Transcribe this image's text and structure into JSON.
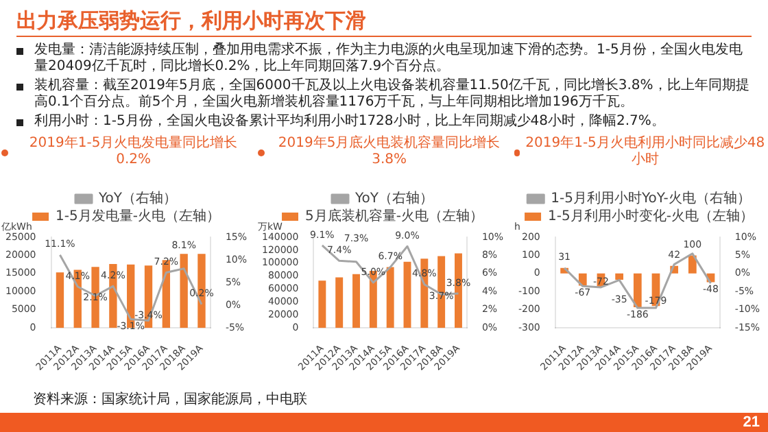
{
  "chart_data": [
    {
      "type": "other",
      "title": "出力承压弱势运行，利用小时再次下滑",
      "annotations": [
        "发电量：清洁能源持续压制，叠加用电需求不振，作为主力电源的火电呈现加速下滑的态势。1-5月份，全国火电发电量20409亿千瓦时，同比增长0.2%，比上年同期回落7.9个百分点。",
        "装机容量：截至2019年5月底，全国6000千瓦及以上火电设备装机容量11.50亿千瓦，同比增长3.8%，比上年同期提高0.1个百分点。前5个月，全国火电新增装机容量1176万千瓦，与上年同期相比增加196万千瓦。",
        "利用小时：1-5月份，全国火电设备累计平均利用小时1728小时，比上年同期减少48小时，降幅2.7%。"
      ]
    },
    {
      "type": "bar",
      "title": "2019年1-5月火电发电量同比增长0.2%",
      "ylabel": "亿kWh",
      "categories": [
        "2011A",
        "2012A",
        "2013A",
        "2014A",
        "2015A",
        "2016A",
        "2017A",
        "2018A",
        "2019A"
      ],
      "legend": "top",
      "series": [
        {
          "name": "1-5月发电量-火电（左轴）",
          "type": "bar",
          "color": "#ed7d31",
          "values": [
            15300,
            16000,
            16800,
            17600,
            17500,
            17200,
            18700,
            20400,
            20400
          ]
        },
        {
          "name": "YoY（右轴）",
          "type": "line",
          "axis": "y2",
          "color": "#a5a5a5",
          "values": [
            11.1,
            4.1,
            2.1,
            4.2,
            -3.1,
            -3.4,
            7.2,
            8.1,
            0.2
          ],
          "value_labels": [
            "11.1%",
            "4.1%",
            "2.1%",
            "4.2%",
            "-3.1%",
            "-3.4%",
            "7.2%",
            "8.1%",
            "0.2%"
          ]
        }
      ],
      "ylim": [
        0,
        25000
      ],
      "yticks": [
        0,
        5000,
        10000,
        15000,
        20000,
        25000
      ],
      "y2lim": [
        -5,
        15
      ],
      "y2ticks": [
        {
          "value": -5,
          "label": "-5%"
        },
        {
          "value": 0,
          "label": "0%"
        },
        {
          "value": 5,
          "label": "5%"
        },
        {
          "value": 10,
          "label": "10%"
        },
        {
          "value": 15,
          "label": "15%"
        }
      ]
    },
    {
      "type": "bar",
      "title": "2019年5月底火电装机容量同比增长3.8%",
      "ylabel": "万kW",
      "categories": [
        "2011A",
        "2012A",
        "2013A",
        "2014A",
        "2015A",
        "2016A",
        "2017A",
        "2018A",
        "2019A"
      ],
      "legend": "top",
      "series": [
        {
          "name": "5月底装机容量-火电（左轴）",
          "type": "bar",
          "color": "#ed7d31",
          "values": [
            73000,
            78000,
            83000,
            88000,
            94000,
            102000,
            107000,
            111000,
            115000
          ]
        },
        {
          "name": "YoY（右轴）",
          "type": "line",
          "axis": "y2",
          "color": "#a5a5a5",
          "values": [
            9.1,
            7.4,
            7.3,
            5.0,
            6.7,
            9.0,
            4.8,
            3.7,
            3.8
          ],
          "value_labels": [
            "9.1%",
            "7.4%",
            "7.3%",
            "5.0%",
            "6.7%",
            "9.0%",
            "4.8%",
            "3.7%",
            "3.8%"
          ]
        }
      ],
      "ylim": [
        0,
        140000
      ],
      "yticks": [
        0,
        20000,
        40000,
        60000,
        80000,
        100000,
        120000,
        140000
      ],
      "y2lim": [
        0,
        10
      ],
      "y2ticks": [
        {
          "value": 0,
          "label": "0%"
        },
        {
          "value": 2,
          "label": "2%"
        },
        {
          "value": 4,
          "label": "4%"
        },
        {
          "value": 6,
          "label": "6%"
        },
        {
          "value": 8,
          "label": "8%"
        },
        {
          "value": 10,
          "label": "10%"
        }
      ]
    },
    {
      "type": "bar",
      "title": "2019年1-5月火电利用小时同比减少48小时",
      "ylabel": "h",
      "categories": [
        "2011A",
        "2012A",
        "2013A",
        "2014A",
        "2015A",
        "2016A",
        "2017A",
        "2018A",
        "2019A"
      ],
      "legend": "top",
      "series": [
        {
          "name": "1-5月利用小时变化-火电（左轴）",
          "type": "bar",
          "color": "#ed7d31",
          "values": [
            31,
            -67,
            -72,
            -35,
            -186,
            -179,
            42,
            100,
            -48
          ],
          "value_labels": [
            "31",
            "-67",
            "-72",
            "-35",
            "-186",
            "-179",
            "42",
            "100",
            "-48"
          ]
        },
        {
          "name": "1-5月利用小时YoY-火电（右轴）",
          "type": "line",
          "axis": "y2",
          "color": "#a5a5a5",
          "values": [
            1.5,
            -3.5,
            -3.8,
            -1.8,
            -9.5,
            -9.5,
            2.5,
            5.5,
            -2.7
          ]
        }
      ],
      "ylim": [
        -300,
        200
      ],
      "yticks": [
        -300,
        -200,
        -100,
        0,
        100,
        200
      ],
      "y2lim": [
        -15,
        10
      ],
      "y2ticks": [
        {
          "value": -15,
          "label": "-15%"
        },
        {
          "value": -10,
          "label": "-10%"
        },
        {
          "value": -5,
          "label": "-5%"
        },
        {
          "value": 0,
          "label": "0%"
        },
        {
          "value": 5,
          "label": "5%"
        },
        {
          "value": 10,
          "label": "10%"
        }
      ]
    },
    {
      "type": "other",
      "annotations": [
        "资料来源：国家统计局，国家能源局，中电联",
        "21"
      ]
    }
  ]
}
